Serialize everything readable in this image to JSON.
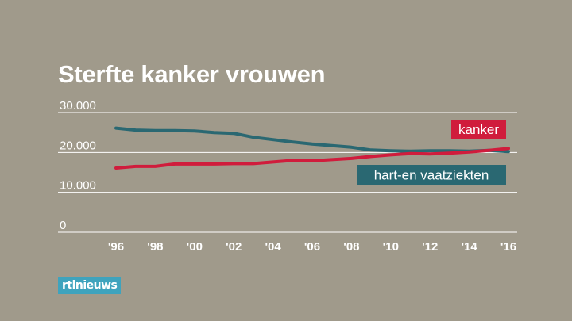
{
  "brand": {
    "logo_text": "rtlnieuws"
  },
  "chart_data": {
    "type": "line",
    "title": "Sterfte kanker vrouwen",
    "xlabel": "",
    "ylabel": "",
    "ylim": [
      0,
      30000
    ],
    "xlim": [
      1996,
      2016
    ],
    "yticks": [
      {
        "value": 30000,
        "label": "30.000"
      },
      {
        "value": 20000,
        "label": "20.000"
      },
      {
        "value": 10000,
        "label": "10.000"
      },
      {
        "value": 0,
        "label": "0"
      }
    ],
    "xticks": [
      {
        "value": 1996,
        "label": "'96"
      },
      {
        "value": 1998,
        "label": "'98"
      },
      {
        "value": 2000,
        "label": "'00"
      },
      {
        "value": 2002,
        "label": "'02"
      },
      {
        "value": 2004,
        "label": "'04"
      },
      {
        "value": 2006,
        "label": "'06"
      },
      {
        "value": 2008,
        "label": "'08"
      },
      {
        "value": 2010,
        "label": "'10"
      },
      {
        "value": 2012,
        "label": "'12"
      },
      {
        "value": 2014,
        "label": "'14"
      },
      {
        "value": 2016,
        "label": "'16"
      }
    ],
    "grid": true,
    "legend": "inline labels",
    "x": [
      1996,
      1997,
      1998,
      1999,
      2000,
      2001,
      2002,
      2003,
      2004,
      2005,
      2006,
      2007,
      2008,
      2009,
      2010,
      2011,
      2012,
      2013,
      2014,
      2015,
      2016
    ],
    "series": [
      {
        "name": "kanker",
        "color": "#d01c3c",
        "values": [
          16100,
          16500,
          16500,
          17100,
          17100,
          17100,
          17200,
          17200,
          17600,
          18000,
          17900,
          18200,
          18500,
          19000,
          19400,
          19700,
          19600,
          19800,
          20100,
          20500,
          21000
        ]
      },
      {
        "name": "hart-en vaatziekten",
        "color": "#2a6872",
        "values": [
          26100,
          25600,
          25500,
          25500,
          25400,
          25000,
          24800,
          23800,
          23200,
          22600,
          22100,
          21700,
          21300,
          20600,
          20400,
          20300,
          20400,
          20400,
          20300,
          20500,
          20200
        ]
      }
    ]
  }
}
